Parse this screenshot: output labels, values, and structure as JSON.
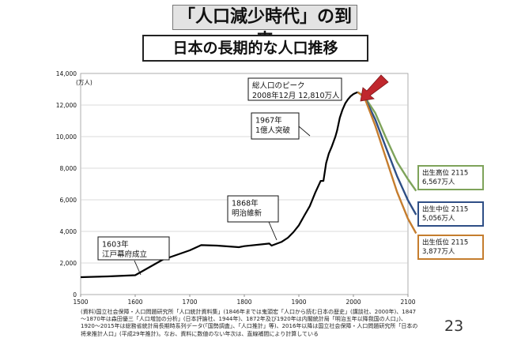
{
  "slide": {
    "main_title": "「人口減少時代」の到来",
    "chart_title": "日本の長期的な人口推移",
    "page_number": "23"
  },
  "source_note": {
    "lines": [
      "(資料)国立社会保障・人口問題研究所「人口統計資料集」(1846年までは鬼頭宏「人口から読む日本の歴史」(講談社、2000年)、1847",
      "～1870年は森田優三「人口増加の分析」(日本評論社、1944年)、1872年及び1920年は内閣統計局「明治五年以降我国の人口」)、",
      "1920～2015年は総務省統計局長期時系列データ(「国勢調査」、「人口推計」等)、2016年以降は国立社会保障・人口問題研究所「日本の",
      "将来推計人口」(平成29年推計)。なお、資料に数値のない年次は、直線補間により計算している"
    ]
  },
  "chart_data": {
    "type": "line",
    "unit_label": "(万人)",
    "xlim": [
      1500,
      2100
    ],
    "ylim": [
      0,
      14000
    ],
    "x_ticks": [
      1500,
      1600,
      1700,
      1800,
      1900,
      2000,
      2100
    ],
    "y_ticks": [
      0,
      2000,
      4000,
      6000,
      8000,
      10000,
      12000,
      14000
    ],
    "y_tick_labels": [
      "0",
      "2,000",
      "4,000",
      "6,000",
      "8,000",
      "10,000",
      "12,000",
      "14,000"
    ],
    "grid": true,
    "series": [
      {
        "color": "#000000",
        "x": [
          1500,
          1550,
          1600,
          1650,
          1700,
          1721,
          1750,
          1790,
          1800,
          1846,
          1850,
          1868,
          1880,
          1890,
          1900,
          1910,
          1920,
          1930,
          1940,
          1945,
          1950,
          1955,
          1960,
          1967,
          1970,
          1975,
          1980,
          1985,
          1990,
          1995,
          2000,
          2005,
          2008
        ],
        "y": [
          1100,
          1150,
          1227,
          2200,
          2800,
          3128,
          3100,
          3000,
          3065,
          3230,
          3100,
          3330,
          3600,
          3950,
          4385,
          5000,
          5596,
          6445,
          7193,
          7200,
          8320,
          8928,
          9342,
          10000,
          10372,
          11194,
          11706,
          12105,
          12361,
          12557,
          12693,
          12777,
          12810
        ]
      },
      {
        "color": "#7ea35a",
        "x": [
          2008,
          2020,
          2040,
          2060,
          2080,
          2100,
          2115
        ],
        "y": [
          12810,
          12550,
          11500,
          9900,
          8400,
          7300,
          6567
        ]
      },
      {
        "color": "#2f4f86",
        "x": [
          2008,
          2020,
          2040,
          2060,
          2080,
          2100,
          2115
        ],
        "y": [
          12810,
          12530,
          11090,
          9280,
          7500,
          5970,
          5056
        ]
      },
      {
        "color": "#c57d2e",
        "x": [
          2008,
          2020,
          2040,
          2060,
          2080,
          2100,
          2115
        ],
        "y": [
          12810,
          12500,
          10700,
          8600,
          6500,
          4800,
          3877
        ]
      }
    ],
    "annotations": [
      {
        "lines": [
          "1603年",
          "江戸幕府成立"
        ]
      },
      {
        "lines": [
          "1868年",
          "明治維新"
        ]
      },
      {
        "lines": [
          "1967年",
          "1億人突破"
        ]
      },
      {
        "lines": [
          "総人口のピーク",
          "2008年12月 12,810万人"
        ]
      },
      {
        "lines": [
          "出生高位 2115",
          "6,567万人"
        ],
        "border_color": "#7ea35a"
      },
      {
        "lines": [
          "出生中位 2115",
          "5,056万人"
        ],
        "border_color": "#2f4f86"
      },
      {
        "lines": [
          "出生低位 2115",
          "3,877万人"
        ],
        "border_color": "#c57d2e"
      }
    ],
    "colors": {
      "peak_arrow": "#c0272d"
    }
  }
}
